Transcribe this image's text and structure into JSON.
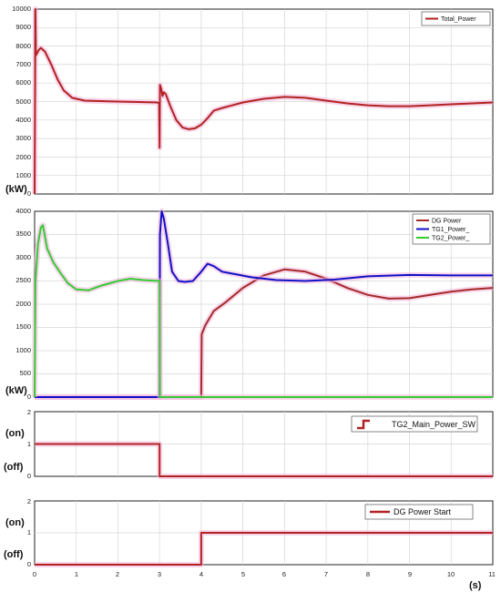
{
  "chart_data": [
    {
      "type": "line",
      "ylabel": "(kW)",
      "ylim": [
        0,
        10000
      ],
      "y_ticks": [
        "0",
        "1000",
        "2000",
        "3000",
        "4000",
        "5000",
        "6000",
        "7000",
        "8000",
        "9000",
        "10000"
      ],
      "xlim": [
        0,
        11
      ],
      "grid": true,
      "legend_position": "top-right",
      "series": [
        {
          "name": "Total_Power",
          "color": "#b22222",
          "x": [
            0,
            0.02,
            0.03,
            0.1,
            0.15,
            0.25,
            0.4,
            0.55,
            0.7,
            0.9,
            1.2,
            2.0,
            2.95,
            2.99,
            3.0,
            3.01,
            3.04,
            3.07,
            3.1,
            3.15,
            3.25,
            3.4,
            3.55,
            3.7,
            3.85,
            4.0,
            4.15,
            4.3,
            4.5,
            5.0,
            5.5,
            6.0,
            6.5,
            7.0,
            7.5,
            8.0,
            8.5,
            9.0,
            9.5,
            10.0,
            10.5,
            11.0
          ],
          "y": [
            0,
            10000,
            7500,
            7800,
            7900,
            7700,
            7000,
            6200,
            5600,
            5200,
            5050,
            5000,
            4950,
            4900,
            2500,
            5900,
            5700,
            5300,
            5500,
            5400,
            4800,
            4000,
            3600,
            3500,
            3550,
            3750,
            4100,
            4500,
            4650,
            4950,
            5150,
            5250,
            5200,
            5050,
            4900,
            4800,
            4750,
            4750,
            4800,
            4850,
            4900,
            4950
          ]
        }
      ]
    },
    {
      "type": "line",
      "ylabel": "(kW)",
      "ylim": [
        0,
        4000
      ],
      "y_ticks": [
        "0",
        "500",
        "1000",
        "1500",
        "2000",
        "2500",
        "3000",
        "3500",
        "4000"
      ],
      "xlim": [
        0,
        11
      ],
      "grid": true,
      "legend_position": "top-right",
      "series": [
        {
          "name": "DG Power",
          "color": "#a52a2a",
          "x": [
            0,
            4.0,
            4.01,
            4.1,
            4.3,
            4.6,
            5.0,
            5.5,
            6.0,
            6.5,
            7.0,
            7.5,
            8.0,
            8.5,
            9.0,
            9.5,
            10.0,
            10.5,
            11.0
          ],
          "y": [
            0,
            0,
            1350,
            1550,
            1850,
            2050,
            2350,
            2620,
            2750,
            2700,
            2550,
            2350,
            2200,
            2120,
            2130,
            2200,
            2270,
            2320,
            2350
          ]
        },
        {
          "name": "TG1_Power_",
          "color": "#1010c8",
          "x": [
            0,
            3.0,
            3.01,
            3.05,
            3.1,
            3.2,
            3.3,
            3.45,
            3.6,
            3.8,
            4.0,
            4.15,
            4.3,
            4.5,
            4.8,
            5.2,
            5.8,
            6.5,
            7.2,
            8.0,
            9.0,
            10.0,
            11.0
          ],
          "y": [
            0,
            0,
            3500,
            4000,
            3850,
            3300,
            2700,
            2500,
            2480,
            2500,
            2700,
            2870,
            2820,
            2700,
            2650,
            2580,
            2520,
            2500,
            2530,
            2600,
            2630,
            2620,
            2620
          ]
        },
        {
          "name": "TG2_Power_",
          "color": "#33cc33",
          "x": [
            0,
            0.02,
            0.08,
            0.15,
            0.2,
            0.3,
            0.45,
            0.6,
            0.8,
            1.0,
            1.3,
            1.6,
            2.0,
            2.3,
            2.6,
            2.99,
            3.0,
            3.01,
            11.0
          ],
          "y": [
            0,
            2500,
            3300,
            3650,
            3700,
            3200,
            2900,
            2700,
            2450,
            2320,
            2300,
            2400,
            2500,
            2550,
            2520,
            2500,
            2500,
            0,
            0
          ]
        }
      ]
    },
    {
      "type": "line",
      "ylim": [
        0,
        2
      ],
      "y_ticks": [
        "0",
        "1",
        "2"
      ],
      "y_state_labels": [
        "(on)",
        "(off)"
      ],
      "xlim": [
        0,
        11
      ],
      "grid": true,
      "legend_position": "top-right",
      "series": [
        {
          "name": "TG2_Main_Power_SW",
          "color": "#b22222",
          "x": [
            0,
            3.0,
            3.0,
            11.0
          ],
          "y": [
            1,
            1,
            0,
            0
          ]
        }
      ]
    },
    {
      "type": "line",
      "ylim": [
        0,
        2
      ],
      "y_ticks": [
        "0",
        "1",
        "2"
      ],
      "y_state_labels": [
        "(on)",
        "(off)"
      ],
      "xlim": [
        0,
        11
      ],
      "x_ticks": [
        "0",
        "1",
        "2",
        "3",
        "4",
        "5",
        "6",
        "7",
        "8",
        "9",
        "10",
        "11"
      ],
      "xlabel": "(s)",
      "grid": true,
      "legend_position": "top-right",
      "series": [
        {
          "name": "DG Power Start",
          "color": "#b22222",
          "x": [
            0,
            4.0,
            4.0,
            11.0
          ],
          "y": [
            0,
            0,
            1,
            1
          ]
        }
      ]
    }
  ]
}
